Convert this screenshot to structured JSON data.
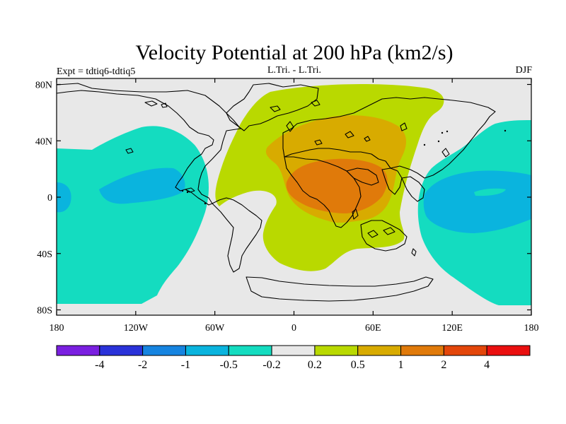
{
  "title": "Velocity Potential at 200 hPa (km2/s)",
  "subtitle_left": "Expt = tdtiq6-tdtiq5",
  "subtitle_center": "L.Tri. - L.Tri.",
  "subtitle_right": "DJF",
  "y_ticks": [
    {
      "lat": 80,
      "label": "80N"
    },
    {
      "lat": 40,
      "label": "40N"
    },
    {
      "lat": 0,
      "label": "0"
    },
    {
      "lat": -40,
      "label": "40S"
    },
    {
      "lat": -80,
      "label": "80S"
    }
  ],
  "x_ticks": [
    {
      "lon": -180,
      "label": "180"
    },
    {
      "lon": -120,
      "label": "120W"
    },
    {
      "lon": -60,
      "label": "60W"
    },
    {
      "lon": 0,
      "label": "0"
    },
    {
      "lon": 60,
      "label": "60E"
    },
    {
      "lon": 120,
      "label": "120E"
    },
    {
      "lon": 180,
      "label": "180"
    }
  ],
  "colorbar": {
    "colors": [
      "#7a1fe0",
      "#2a32d9",
      "#1684e0",
      "#0ab4de",
      "#14dcc0",
      "#e8e8e8",
      "#b9d900",
      "#d8ab00",
      "#e07a0a",
      "#e3460a",
      "#ea0f0f"
    ],
    "labels": [
      "-4",
      "-2",
      "-1",
      "-0.5",
      "-0.2",
      "0.2",
      "0.5",
      "1",
      "2",
      "4"
    ]
  },
  "background_color": "#e8e8e8"
}
